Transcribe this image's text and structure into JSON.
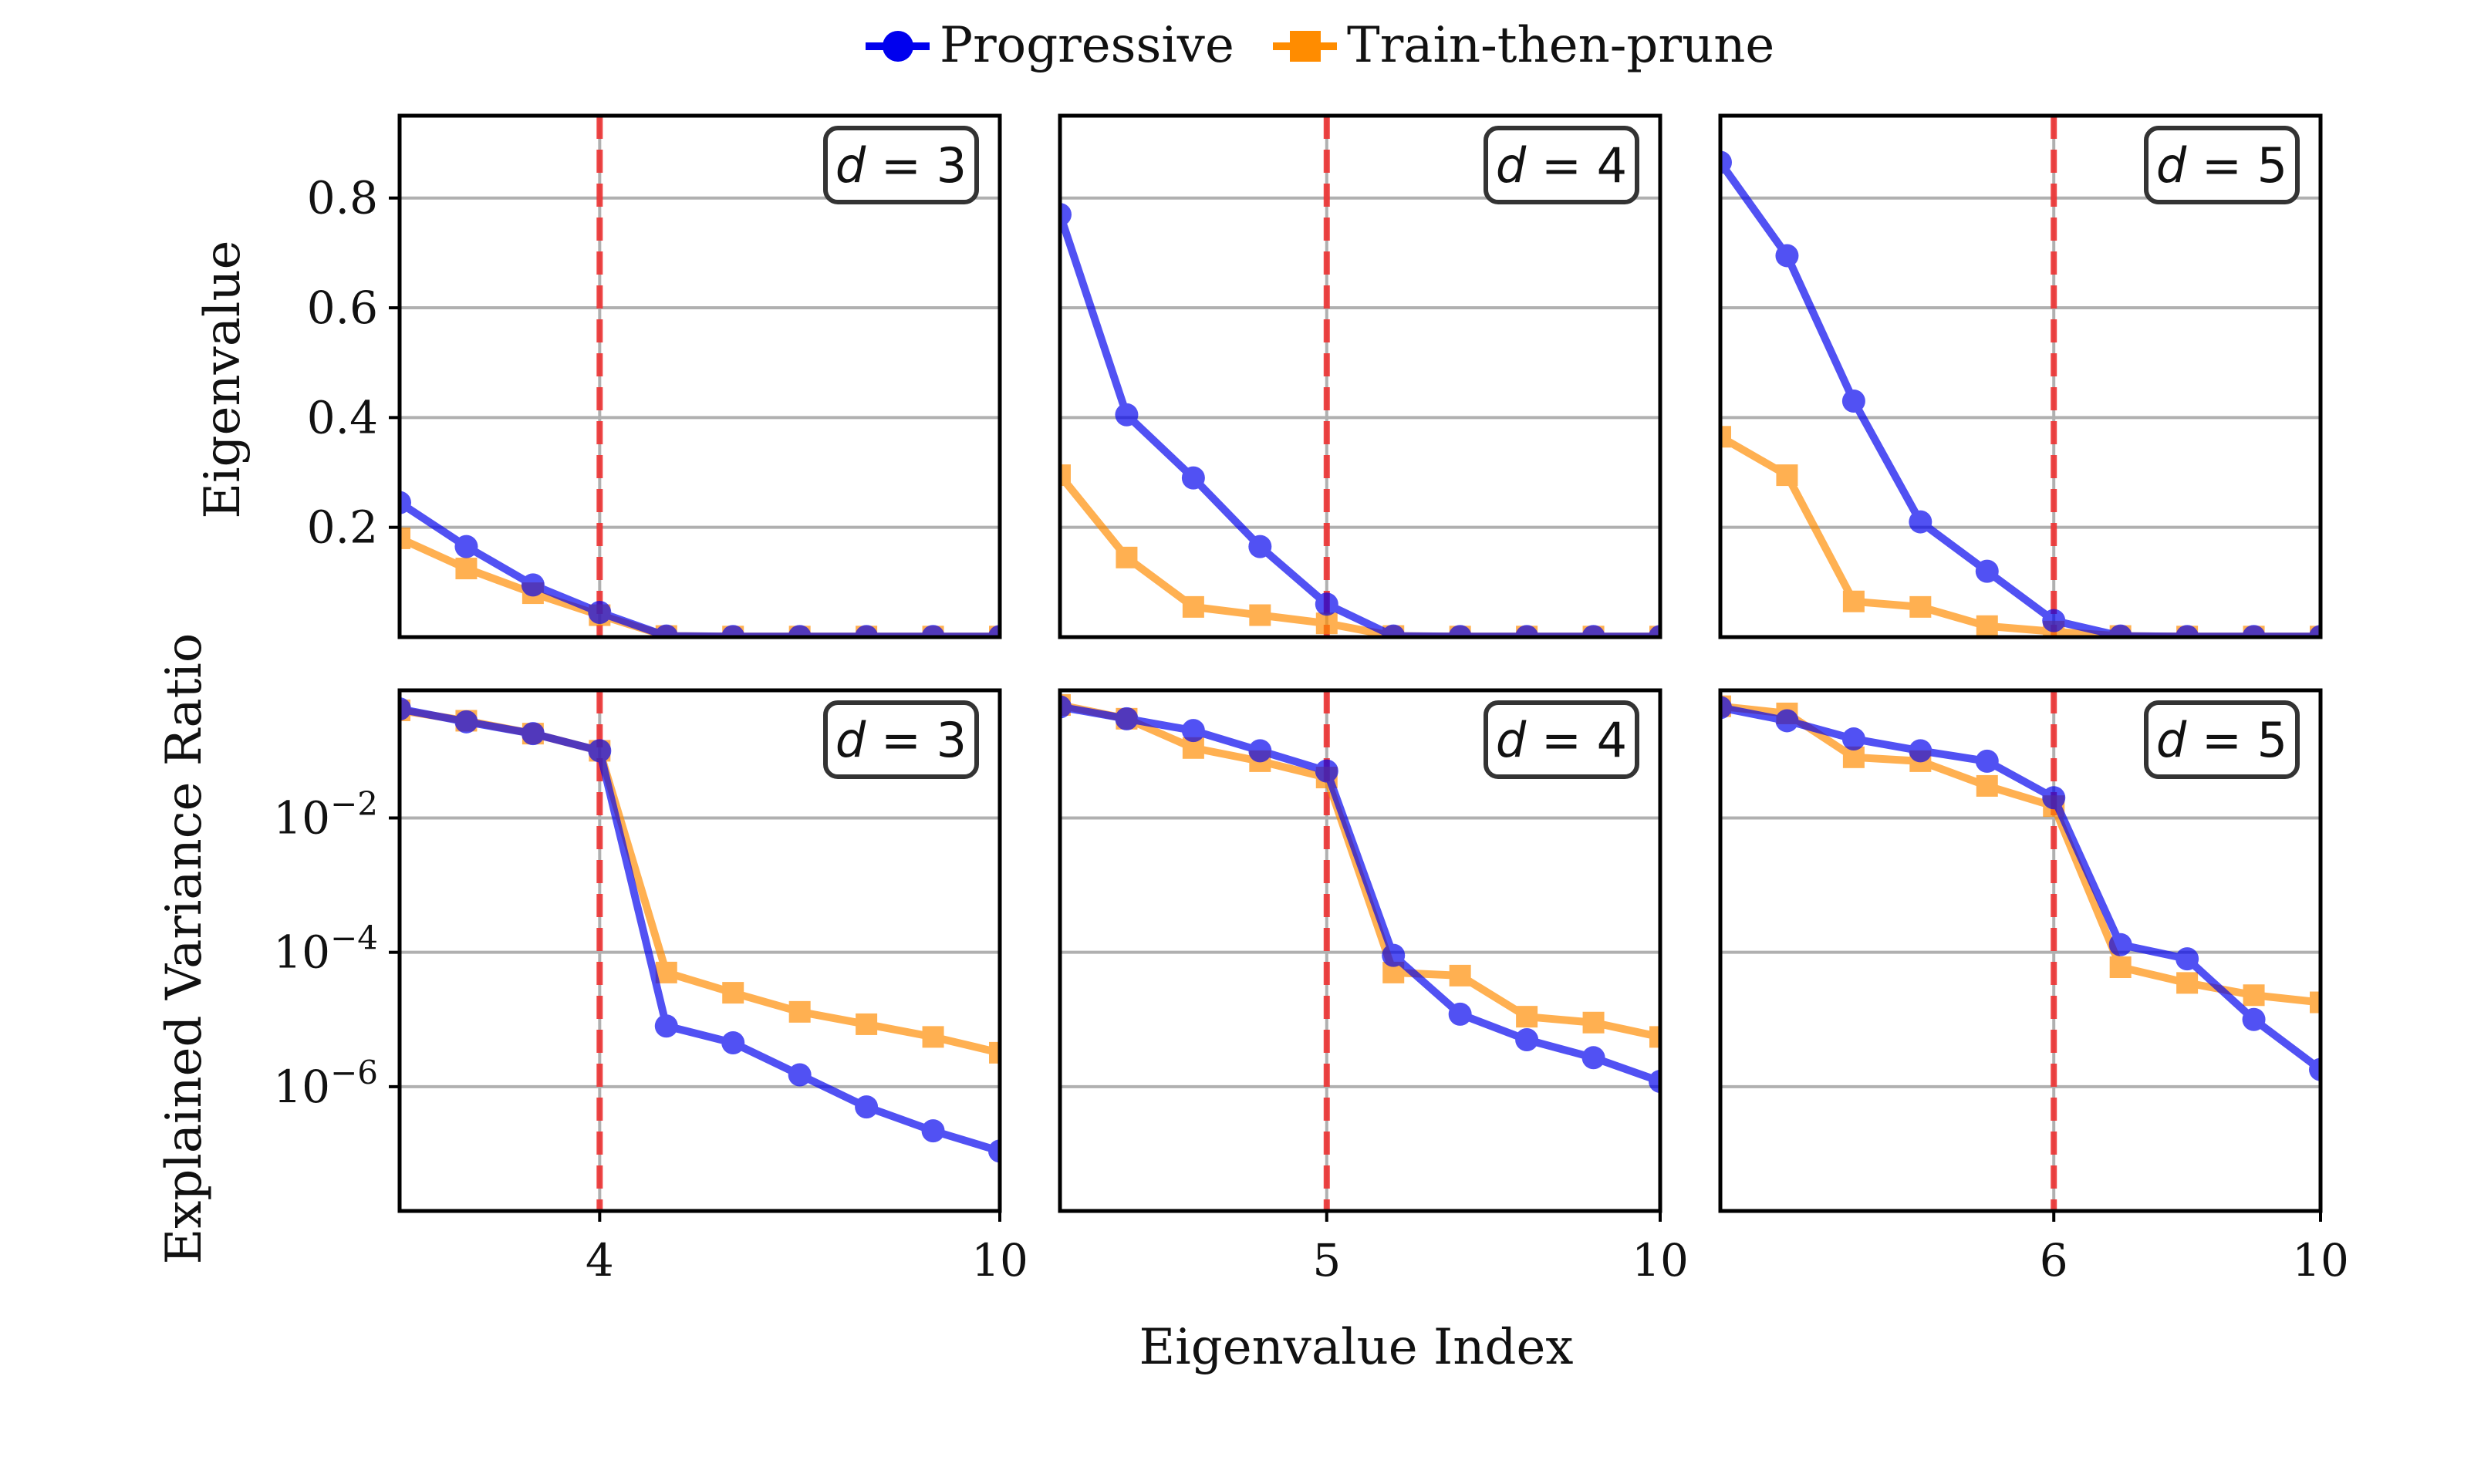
{
  "legend": {
    "items": [
      {
        "label": "Progressive",
        "color": "#0000ee",
        "marker": "circle"
      },
      {
        "label": "Train-then-prune",
        "color": "#ff8c00",
        "marker": "square"
      }
    ]
  },
  "axes": {
    "xlabel": "Eigenvalue Index",
    "ylabel_top": "Eigenvalue",
    "ylabel_bottom": "Explained Variance Ratio"
  },
  "chart_data": [
    {
      "type": "line",
      "row": "eigenvalue",
      "panel_label": "d = 3",
      "panel_var": "d",
      "panel_value": "3",
      "x": [
        1,
        2,
        3,
        4,
        5,
        6,
        7,
        8,
        9,
        10
      ],
      "xlim": [
        1,
        10
      ],
      "xticks": [
        "4",
        "10"
      ],
      "cutoff_x": 4,
      "ylim": [
        0,
        0.95
      ],
      "yscale": "linear",
      "yticks": [
        "0.2",
        "0.4",
        "0.6",
        "0.8"
      ],
      "series": [
        {
          "name": "Progressive",
          "values": [
            0.245,
            0.165,
            0.095,
            0.045,
            0.002,
            0.001,
            0.001,
            0.001,
            0.001,
            0.001
          ]
        },
        {
          "name": "Train-then-prune",
          "values": [
            0.18,
            0.125,
            0.08,
            0.04,
            0.002,
            0.001,
            0.001,
            0.001,
            0.001,
            0.001
          ]
        }
      ]
    },
    {
      "type": "line",
      "row": "eigenvalue",
      "panel_label": "d = 4",
      "panel_var": "d",
      "panel_value": "4",
      "x": [
        1,
        2,
        3,
        4,
        5,
        6,
        7,
        8,
        9,
        10
      ],
      "xlim": [
        1,
        10
      ],
      "xticks": [
        "5",
        "10"
      ],
      "cutoff_x": 5,
      "ylim": [
        0,
        0.95
      ],
      "yscale": "linear",
      "yticks": [],
      "series": [
        {
          "name": "Progressive",
          "values": [
            0.77,
            0.405,
            0.29,
            0.165,
            0.06,
            0.002,
            0.001,
            0.001,
            0.001,
            0.001
          ]
        },
        {
          "name": "Train-then-prune",
          "values": [
            0.295,
            0.145,
            0.055,
            0.04,
            0.025,
            0.002,
            0.001,
            0.001,
            0.001,
            0.001
          ]
        }
      ]
    },
    {
      "type": "line",
      "row": "eigenvalue",
      "panel_label": "d = 5",
      "panel_var": "d",
      "panel_value": "5",
      "x": [
        1,
        2,
        3,
        4,
        5,
        6,
        7,
        8,
        9,
        10
      ],
      "xlim": [
        1,
        10
      ],
      "xticks": [
        "6",
        "10"
      ],
      "cutoff_x": 6,
      "ylim": [
        0,
        0.95
      ],
      "yscale": "linear",
      "yticks": [],
      "series": [
        {
          "name": "Progressive",
          "values": [
            0.865,
            0.695,
            0.43,
            0.21,
            0.12,
            0.03,
            0.002,
            0.001,
            0.001,
            0.001
          ]
        },
        {
          "name": "Train-then-prune",
          "values": [
            0.365,
            0.295,
            0.065,
            0.055,
            0.02,
            0.01,
            0.002,
            0.001,
            0.001,
            0.001
          ]
        }
      ]
    },
    {
      "type": "line",
      "row": "explained_variance_ratio",
      "panel_label": "d = 3",
      "panel_var": "d",
      "panel_value": "3",
      "x": [
        1,
        2,
        3,
        4,
        5,
        6,
        7,
        8,
        9,
        10
      ],
      "xlim": [
        1,
        10
      ],
      "xticks": [
        "4",
        "10"
      ],
      "cutoff_x": 4,
      "yscale": "log",
      "ylim_log10": [
        -7.85,
        -0.1
      ],
      "yticks": [
        {
          "base": "10",
          "exp": "−2"
        },
        {
          "base": "10",
          "exp": "−4"
        },
        {
          "base": "10",
          "exp": "−6"
        }
      ],
      "series": [
        {
          "name": "Progressive",
          "values": [
            0.42,
            0.27,
            0.18,
            0.1,
            8e-06,
            4.5e-06,
            1.5e-06,
            5e-07,
            2.2e-07,
            1.1e-07
          ]
        },
        {
          "name": "Train-then-prune",
          "values": [
            0.4,
            0.28,
            0.18,
            0.1,
            5e-05,
            2.5e-05,
            1.3e-05,
            8.5e-06,
            5.5e-06,
            3.2e-06
          ]
        }
      ]
    },
    {
      "type": "line",
      "row": "explained_variance_ratio",
      "panel_label": "d = 4",
      "panel_var": "d",
      "panel_value": "4",
      "x": [
        1,
        2,
        3,
        4,
        5,
        6,
        7,
        8,
        9,
        10
      ],
      "xlim": [
        1,
        10
      ],
      "xticks": [
        "5",
        "10"
      ],
      "cutoff_x": 5,
      "yscale": "log",
      "ylim_log10": [
        -7.85,
        -0.1
      ],
      "yticks": [],
      "series": [
        {
          "name": "Progressive",
          "values": [
            0.45,
            0.3,
            0.2,
            0.1,
            0.05,
            9e-05,
            1.2e-05,
            5e-06,
            2.7e-06,
            1.2e-06
          ]
        },
        {
          "name": "Train-then-prune",
          "values": [
            0.48,
            0.3,
            0.11,
            0.07,
            0.04,
            5e-05,
            4.5e-05,
            1.1e-05,
            9e-06,
            5.5e-06
          ]
        }
      ]
    },
    {
      "type": "line",
      "row": "explained_variance_ratio",
      "panel_label": "d = 5",
      "panel_var": "d",
      "panel_value": "5",
      "x": [
        1,
        2,
        3,
        4,
        5,
        6,
        7,
        8,
        9,
        10
      ],
      "xlim": [
        1,
        10
      ],
      "xticks": [
        "6",
        "10"
      ],
      "cutoff_x": 6,
      "yscale": "log",
      "ylim_log10": [
        -7.85,
        -0.1
      ],
      "yticks": [],
      "series": [
        {
          "name": "Progressive",
          "values": [
            0.44,
            0.28,
            0.15,
            0.1,
            0.07,
            0.02,
            0.00013,
            8e-05,
            1e-05,
            1.8e-06
          ]
        },
        {
          "name": "Train-then-prune",
          "values": [
            0.46,
            0.36,
            0.08,
            0.07,
            0.03,
            0.015,
            6e-05,
            3.5e-05,
            2.3e-05,
            1.8e-05
          ]
        }
      ]
    }
  ]
}
